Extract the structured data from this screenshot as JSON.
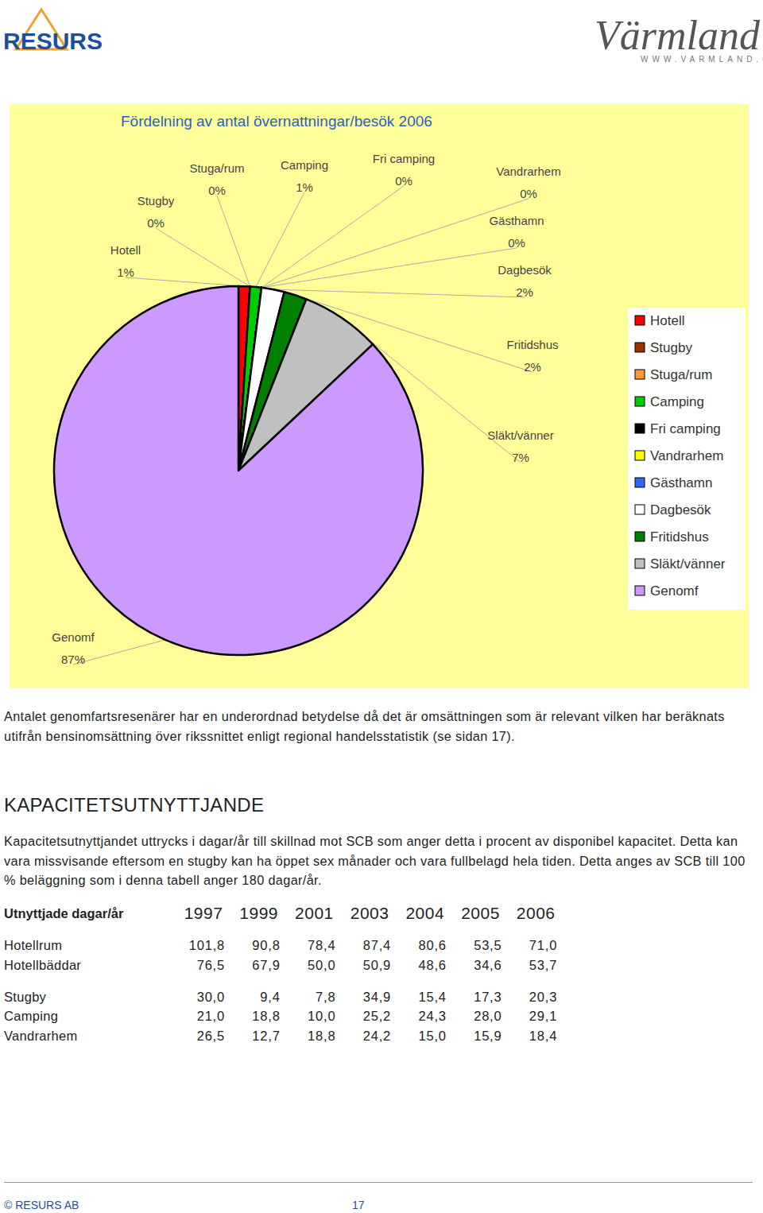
{
  "header": {
    "left_logo": "RESURS",
    "right_logo": "Värmland",
    "right_url": "WWW.VARMLAND.ORG"
  },
  "chart_data": {
    "type": "pie",
    "title": "Fördelning av antal övernattningar/besök 2006",
    "categories": [
      "Hotell",
      "Stugby",
      "Stuga/rum",
      "Camping",
      "Fri camping",
      "Vandrarhem",
      "Gästhamn",
      "Dagbesök",
      "Fritidshus",
      "Släkt/vänner",
      "Genomf"
    ],
    "values": [
      1,
      0,
      0,
      1,
      0,
      0,
      0,
      2,
      2,
      7,
      87
    ],
    "value_labels": [
      "1%",
      "0%",
      "0%",
      "1%",
      "0%",
      "0%",
      "0%",
      "2%",
      "2%",
      "7%",
      "87%"
    ],
    "colors": [
      "#ff0000",
      "#993300",
      "#ff9933",
      "#00cc00",
      "#000000",
      "#ffff00",
      "#3366ff",
      "#ffffff",
      "#008000",
      "#c0c0c0",
      "#cc99ff"
    ],
    "data_labels": true,
    "legend": "right"
  },
  "paragraphs": [
    "Antalet genomfartsresenärer har en underordnad betydelse då det är omsättningen som är relevant vilken har beräknats utifrån bensinomsättning över rikssnittet enligt regional handelsstatistik (se sidan 17)."
  ],
  "section": {
    "heading": "KAPACITETSUTNYTTJANDE",
    "text": "Kapacitetsutnyttjandet uttrycks i dagar/år till skillnad mot SCB som anger detta i procent av disponibel kapacitet. Detta kan vara missvisande eftersom en stugby kan ha öppet sex månader och vara fullbelagd hela tiden. Detta anges av SCB till 100 % beläggning som i denna tabell anger 180 dagar/år."
  },
  "table": {
    "header": "Utnyttjade dagar/år",
    "columns": [
      "1997",
      "1999",
      "2001",
      "2003",
      "2004",
      "2005",
      "2006"
    ],
    "groups": [
      {
        "rows": [
          {
            "label": "Hotellrum",
            "values": [
              "101,8",
              "90,8",
              "78,4",
              "87,4",
              "80,6",
              "53,5",
              "71,0"
            ]
          },
          {
            "label": "Hotellbäddar",
            "values": [
              "76,5",
              "67,9",
              "50,0",
              "50,9",
              "48,6",
              "34,6",
              "53,7"
            ]
          }
        ]
      },
      {
        "rows": [
          {
            "label": "Stugby",
            "values": [
              "30,0",
              "9,4",
              "7,8",
              "34,9",
              "15,4",
              "17,3",
              "20,3"
            ]
          },
          {
            "label": "Camping",
            "values": [
              "21,0",
              "18,8",
              "10,0",
              "25,2",
              "24,3",
              "28,0",
              "29,1"
            ]
          },
          {
            "label": "Vandrarhem",
            "values": [
              "26,5",
              "12,7",
              "18,8",
              "24,2",
              "15,0",
              "15,9",
              "18,4"
            ]
          }
        ]
      }
    ]
  },
  "footer": {
    "left": "© RESURS AB",
    "page": "17"
  }
}
